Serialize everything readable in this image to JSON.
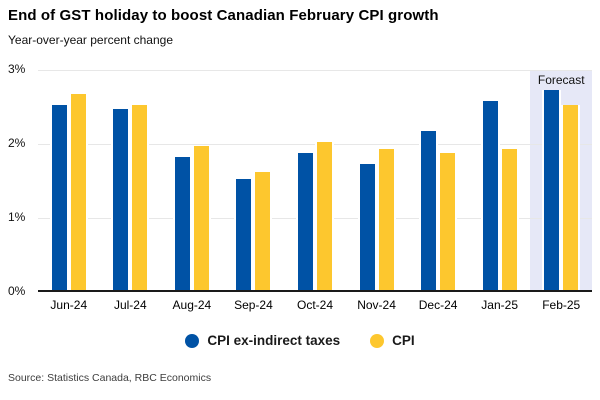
{
  "header": {
    "title": "End of GST holiday to boost Canadian February CPI growth",
    "subtitle": "Year-over-year percent change"
  },
  "chart_data": {
    "type": "bar",
    "title": "End of GST holiday to boost Canadian February CPI growth",
    "subtitle": "Year-over-year percent change",
    "xlabel": "",
    "ylabel": "",
    "categories": [
      "Jun-24",
      "Jul-24",
      "Aug-24",
      "Sep-24",
      "Oct-24",
      "Nov-24",
      "Dec-24",
      "Jan-25",
      "Feb-25"
    ],
    "series": [
      {
        "name": "CPI ex-indirect taxes",
        "color": "#0052a5",
        "values": [
          2.5,
          2.45,
          1.8,
          1.5,
          1.85,
          1.7,
          2.15,
          2.55,
          2.7
        ]
      },
      {
        "name": "CPI",
        "color": "#fdc72e",
        "values": [
          2.65,
          2.5,
          1.95,
          1.6,
          2.0,
          1.9,
          1.85,
          1.9,
          2.5
        ]
      }
    ],
    "ylim": [
      0,
      3
    ],
    "ytick_values": [
      0,
      1,
      2,
      3
    ],
    "ytick_labels": [
      "0%",
      "1%",
      "2%",
      "3%"
    ],
    "grid": true,
    "legend_position": "bottom",
    "forecast": {
      "label": "Forecast",
      "category": "Feb-25",
      "band_color": "#e6e8f7"
    }
  },
  "footer": {
    "source": "Source: Statistics Canada, RBC Economics"
  },
  "colors": {
    "axis": "#1a1a1a",
    "grid": "#e7e7e7",
    "forecast_band": "#e6e8f7",
    "blue": "#0052a5",
    "yellow": "#fdc72e"
  }
}
